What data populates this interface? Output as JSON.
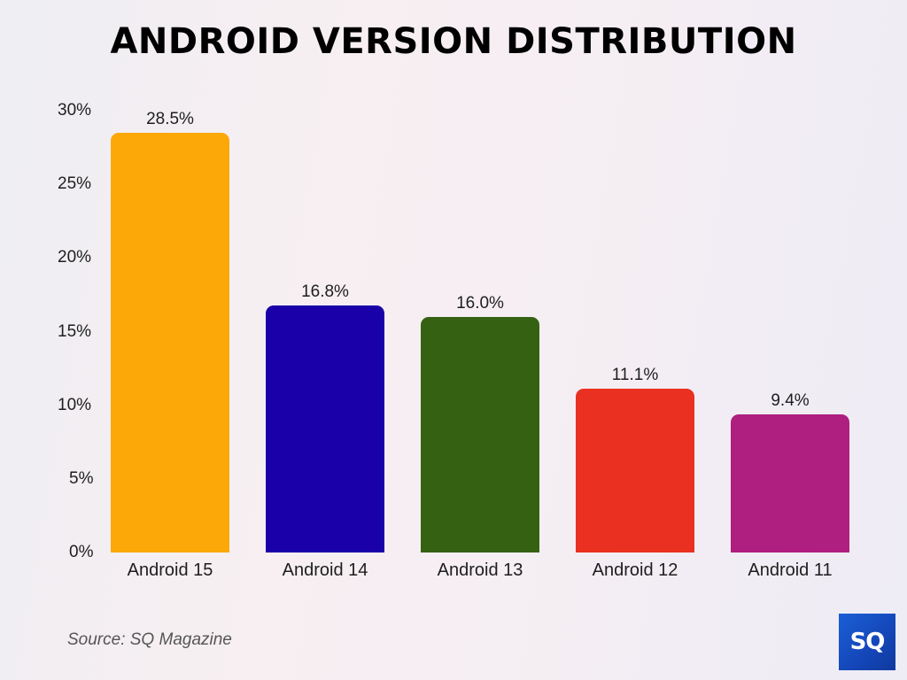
{
  "title": "ANDROID VERSION DISTRIBUTION",
  "source": "Source: SQ Magazine",
  "logo": {
    "text": "SQ",
    "color": "#1651c8"
  },
  "chart_data": {
    "type": "bar",
    "title": "ANDROID VERSION DISTRIBUTION",
    "xlabel": "",
    "ylabel": "",
    "categories": [
      "Android 15",
      "Android 14",
      "Android 13",
      "Android 12",
      "Android 11"
    ],
    "values": [
      28.5,
      16.8,
      16.0,
      11.1,
      9.4
    ],
    "value_labels": [
      "28.5%",
      "16.8%",
      "16.0%",
      "11.1%",
      "9.4%"
    ],
    "colors": [
      "#fba808",
      "#1a00a8",
      "#356212",
      "#ea3020",
      "#ae1f7f"
    ],
    "ylim": [
      0,
      30
    ],
    "yticks": [
      0,
      5,
      10,
      15,
      20,
      25,
      30
    ],
    "ytick_labels": [
      "0%",
      "5%",
      "10%",
      "15%",
      "20%",
      "25%",
      "30%"
    ],
    "grid": false,
    "legend": null
  }
}
